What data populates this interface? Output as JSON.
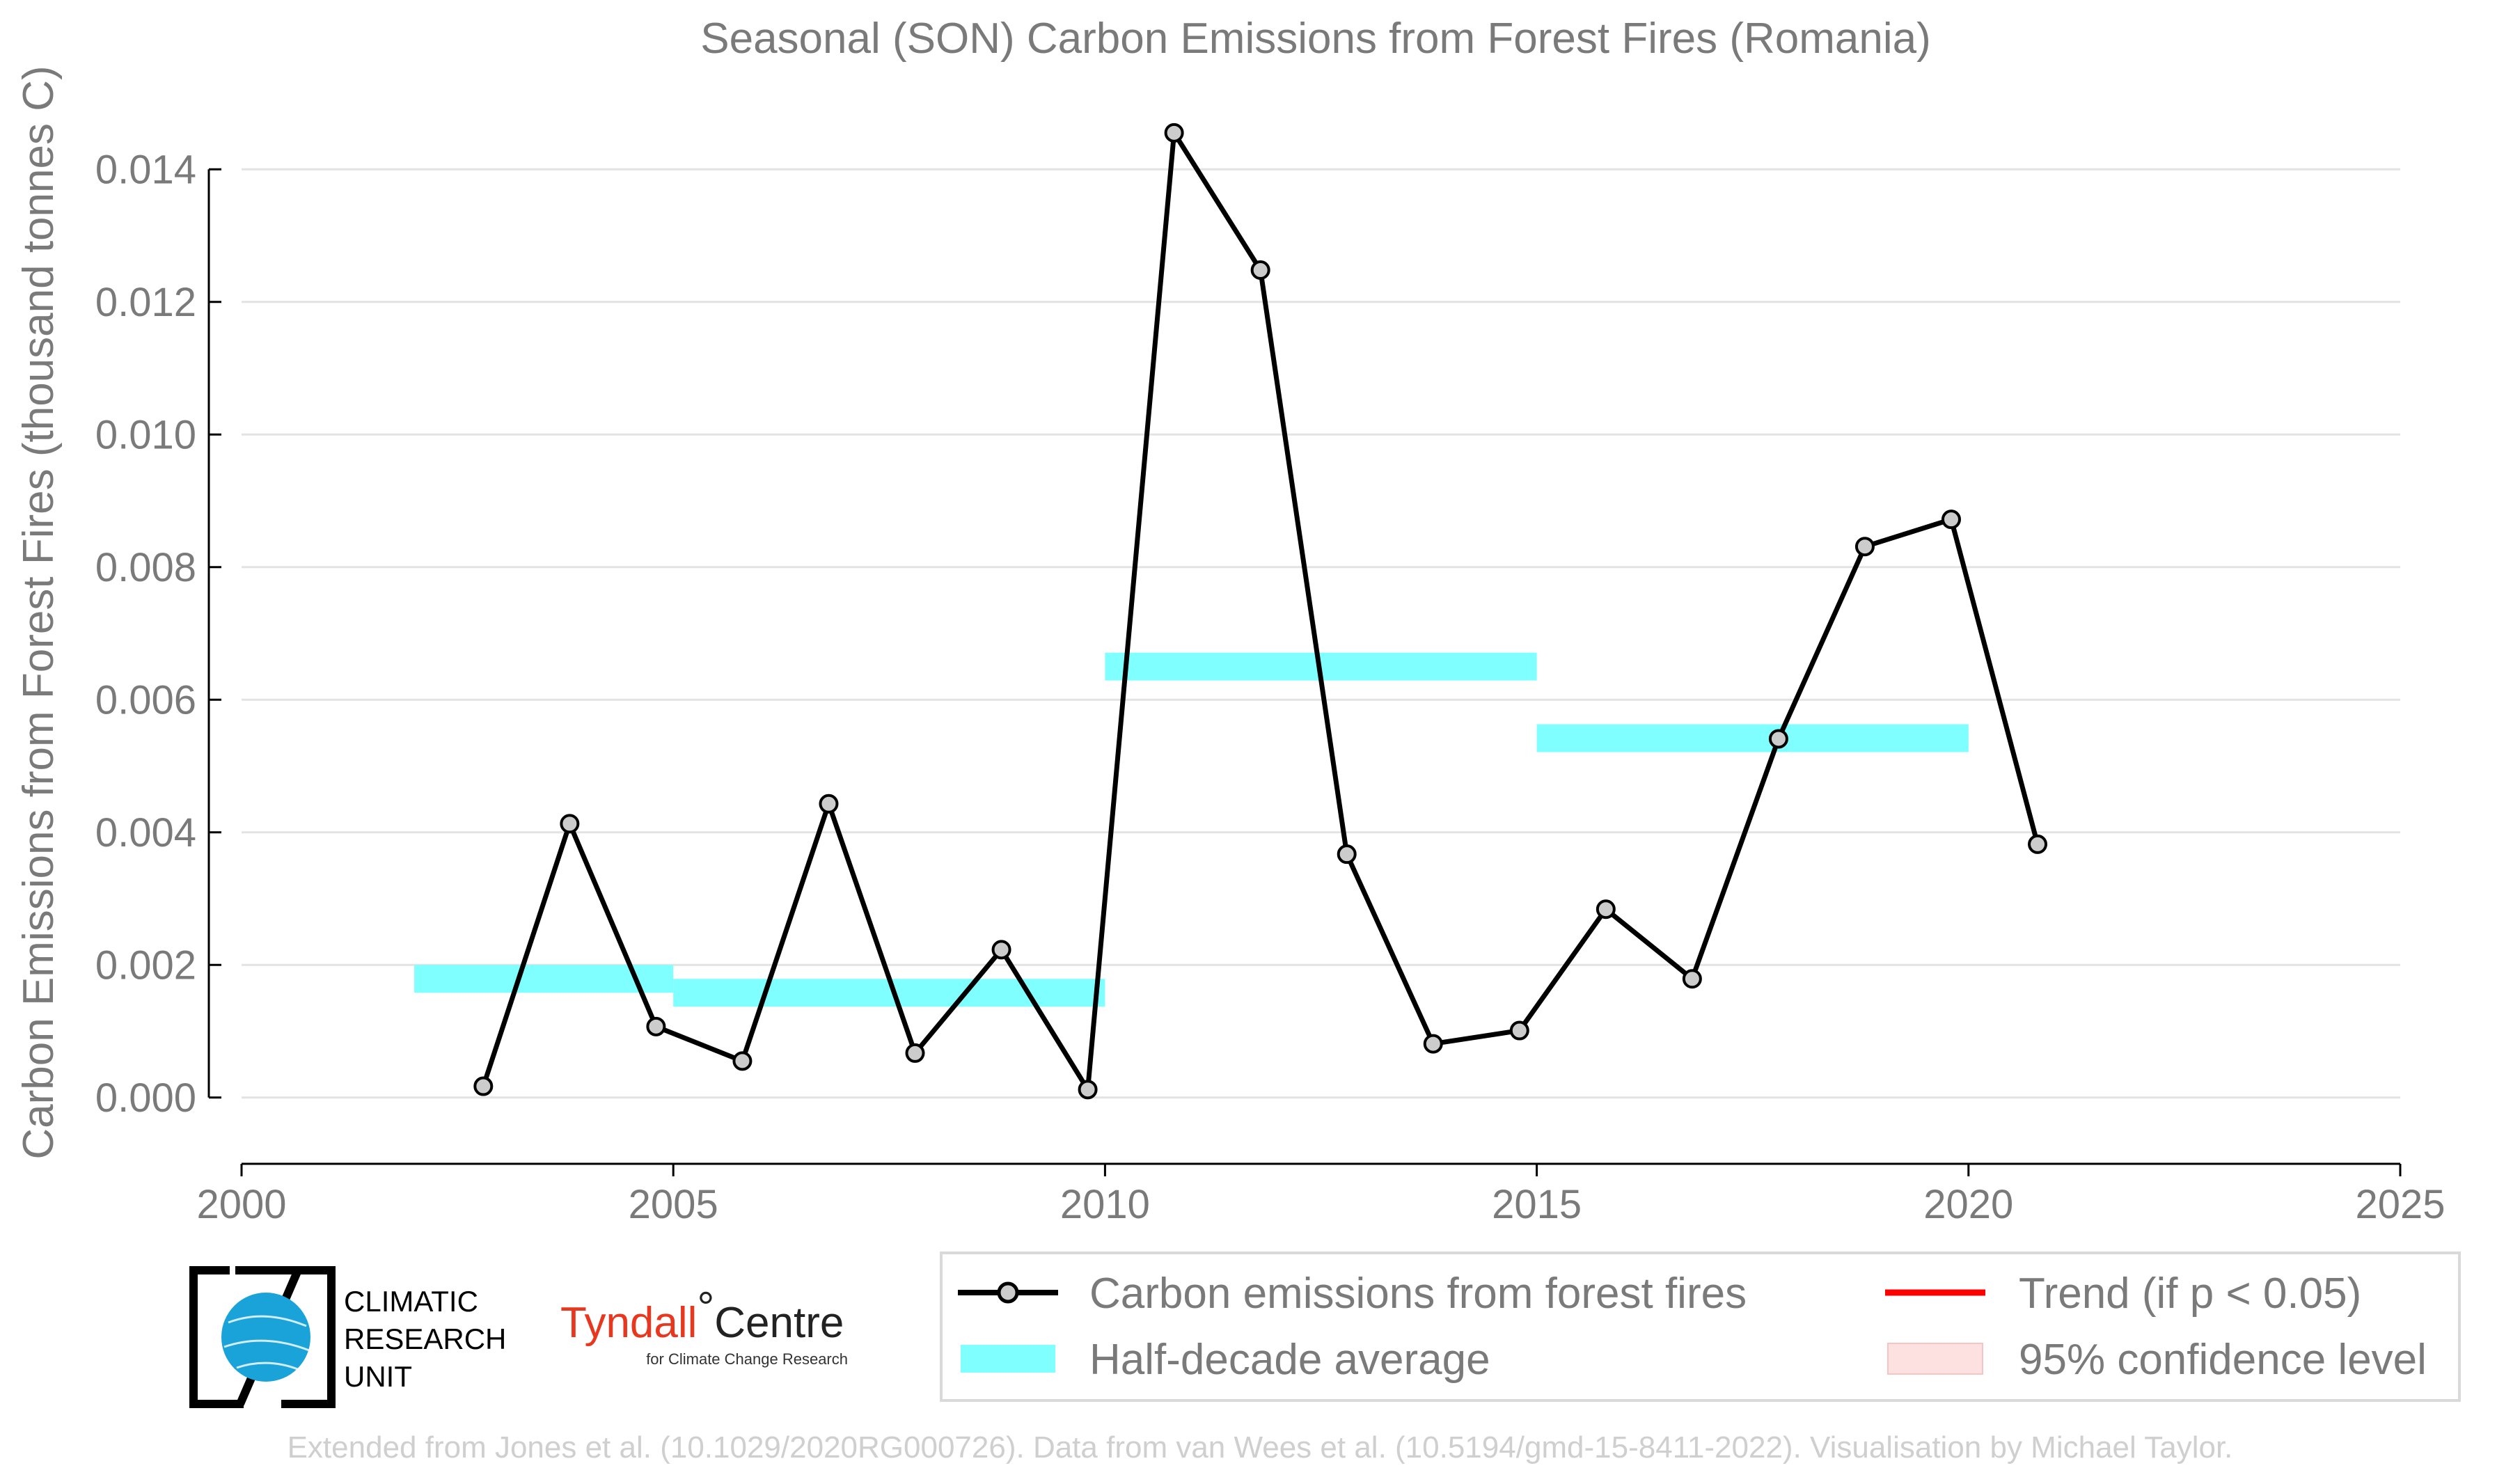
{
  "chart_data": {
    "type": "line",
    "title": "Seasonal (SON) Carbon Emissions from Forest Fires (Romania)",
    "xlabel": "",
    "ylabel": "Carbon Emissions from Forest Fires (thousand tonnes C)",
    "xlim": [
      2000,
      2025
    ],
    "ylim": [
      -0.001,
      0.015
    ],
    "x_ticks": [
      2000,
      2005,
      2010,
      2015,
      2020,
      2025
    ],
    "x_tick_labels": [
      "2000",
      "2005",
      "2010",
      "2015",
      "2020",
      "2025"
    ],
    "y_ticks": [
      0,
      0.002,
      0.004,
      0.006,
      0.008,
      0.01,
      0.012,
      0.014
    ],
    "y_tick_labels": [
      "0.000",
      "0.002",
      "0.004",
      "0.006",
      "0.008",
      "0.010",
      "0.012",
      "0.014"
    ],
    "grid": "horizontal",
    "series": [
      {
        "name": "Carbon emissions from forest fires",
        "color": "#000000",
        "marker_color": "#cccccc",
        "x": [
          2002.8,
          2003.8,
          2004.8,
          2005.8,
          2006.8,
          2007.8,
          2008.8,
          2009.8,
          2010.8,
          2011.8,
          2012.8,
          2013.8,
          2014.8,
          2015.8,
          2016.8,
          2017.8,
          2018.8,
          2019.8,
          2020.8
        ],
        "values": [
          0.00017,
          0.00413,
          0.00107,
          0.00055,
          0.00443,
          0.00067,
          0.00223,
          0.00012,
          0.01455,
          0.01248,
          0.00367,
          0.00081,
          0.00101,
          0.00284,
          0.00179,
          0.00541,
          0.00831,
          0.00872,
          0.00382
        ]
      }
    ],
    "half_decade_average": {
      "name": "Half-decade average",
      "color": "#7fffff",
      "segments": [
        {
          "x_start": 2002,
          "x_end": 2005,
          "value": 0.00179
        },
        {
          "x_start": 2005,
          "x_end": 2010,
          "value": 0.00158
        },
        {
          "x_start": 2010,
          "x_end": 2015,
          "value": 0.0065
        },
        {
          "x_start": 2015,
          "x_end": 2020,
          "value": 0.00542
        }
      ]
    },
    "legend": {
      "placement": "bottom-right",
      "entries": [
        {
          "label": "Carbon emissions from forest fires",
          "color": "#000000",
          "kind": "line-marker"
        },
        {
          "label": "Trend (if p < 0.05)",
          "color": "#ff0000",
          "kind": "line"
        },
        {
          "label": "Half-decade average",
          "color": "#7fffff",
          "kind": "patch"
        },
        {
          "label": "95% confidence level",
          "color": "#fde0e0",
          "kind": "patch"
        }
      ]
    }
  },
  "logos": {
    "cru_lines": [
      "CLIMATIC",
      "RESEARCH",
      "UNIT"
    ],
    "tyndall_main": "Tyndall",
    "tyndall_degree": "°",
    "tyndall_centre": "Centre",
    "tyndall_sub": "for Climate Change Research"
  },
  "footer": "Extended from Jones et al. (10.1029/2020RG000726). Data from van Wees et al. (10.5194/gmd-15-8411-2022). Visualisation by Michael Taylor."
}
